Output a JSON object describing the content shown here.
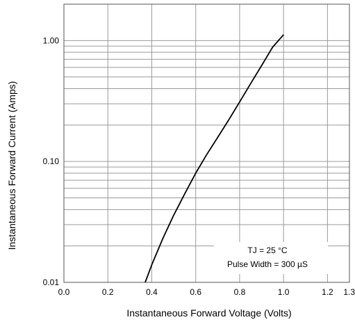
{
  "chart_data": {
    "type": "line",
    "title": "",
    "xlabel": "Instantaneous Forward Voltage (Volts)",
    "ylabel": "Instantaneous Forward Current (Amps)",
    "xlim": [
      0.0,
      1.3
    ],
    "ylim": [
      0.01,
      2.0
    ],
    "yscale": "log",
    "grid": true,
    "x_ticks": [
      0.0,
      0.2,
      0.4,
      0.6,
      0.8,
      1.0,
      1.2,
      1.3
    ],
    "x_tick_labels": [
      "0.0",
      "0.2",
      "0.4",
      "0.6",
      "0.8",
      "1.0",
      "1.2",
      "1.3"
    ],
    "y_ticks": [
      0.01,
      0.1,
      1.0
    ],
    "y_tick_labels": [
      "0.01",
      "0.10",
      "1.00"
    ],
    "annotation": [
      "TJ = 25 °C",
      "Pulse Width = 300 µS"
    ],
    "series": [
      {
        "name": "",
        "x": [
          0.37,
          0.4,
          0.45,
          0.5,
          0.55,
          0.6,
          0.65,
          0.7,
          0.75,
          0.8,
          0.85,
          0.9,
          0.95,
          1.0
        ],
        "y": [
          0.01,
          0.014,
          0.023,
          0.036,
          0.054,
          0.08,
          0.114,
          0.158,
          0.22,
          0.31,
          0.44,
          0.62,
          0.88,
          1.12
        ]
      }
    ],
    "colors": {
      "line": "#000000",
      "grid": "#9a9a9a",
      "frame": "#555555"
    }
  }
}
